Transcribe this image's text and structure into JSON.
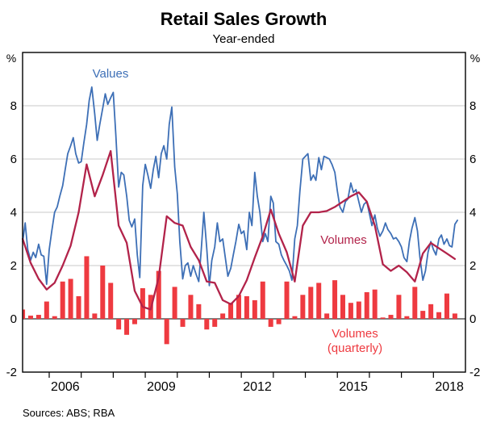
{
  "title": "Retail Sales Growth",
  "subtitle": "Year-ended",
  "source_note": "Sources: ABS; RBA",
  "axis": {
    "unit_left": "%",
    "unit_right": "%",
    "y_min": -2,
    "y_max": 10,
    "y_tick_labels": [
      8,
      6,
      4,
      2,
      0,
      -2
    ],
    "y_gridlines": [
      2,
      4,
      6,
      8
    ],
    "x_min": 2005.17,
    "x_max": 2019.0,
    "x_tick_years": [
      2006,
      2007,
      2008,
      2009,
      2010,
      2011,
      2012,
      2013,
      2014,
      2015,
      2016,
      2017,
      2018
    ],
    "x_year_labels": [
      2006,
      2009,
      2012,
      2015,
      2018
    ]
  },
  "series_labels": {
    "values": "Values",
    "volumes": "Volumes",
    "volumes_quarterly_line1": "Volumes",
    "volumes_quarterly_line2": "(quarterly)"
  },
  "colors": {
    "values_line": "#3d6fb6",
    "volumes_line": "#b2234a",
    "bars": "#ee3a40",
    "grid": "#c9c9c9",
    "axis": "#000000",
    "title_text": "#000000"
  },
  "chart_data": {
    "type": "line+bar",
    "title": "Retail Sales Growth",
    "subtitle": "Year-ended",
    "ylabel": "%",
    "ylim": [
      -2,
      10
    ],
    "xlim": [
      2005.17,
      2019.0
    ],
    "grid": "horizontal",
    "series": [
      {
        "name": "Values (year-ended growth, monthly)",
        "type": "line",
        "color_key": "values_line",
        "points": [
          [
            2005.17,
            2.9
          ],
          [
            2005.25,
            3.6
          ],
          [
            2005.33,
            2.6
          ],
          [
            2005.42,
            2.2
          ],
          [
            2005.5,
            2.5
          ],
          [
            2005.58,
            2.3
          ],
          [
            2005.67,
            2.8
          ],
          [
            2005.75,
            2.4
          ],
          [
            2005.83,
            2.35
          ],
          [
            2005.92,
            1.3
          ],
          [
            2006.0,
            2.6
          ],
          [
            2006.08,
            3.3
          ],
          [
            2006.17,
            4.0
          ],
          [
            2006.25,
            4.2
          ],
          [
            2006.33,
            4.6
          ],
          [
            2006.42,
            5.0
          ],
          [
            2006.5,
            5.6
          ],
          [
            2006.58,
            6.2
          ],
          [
            2006.67,
            6.5
          ],
          [
            2006.75,
            6.8
          ],
          [
            2006.83,
            6.2
          ],
          [
            2006.92,
            5.85
          ],
          [
            2007.0,
            5.9
          ],
          [
            2007.08,
            6.6
          ],
          [
            2007.17,
            7.3
          ],
          [
            2007.25,
            8.2
          ],
          [
            2007.33,
            8.7
          ],
          [
            2007.42,
            7.7
          ],
          [
            2007.5,
            6.7
          ],
          [
            2007.58,
            7.3
          ],
          [
            2007.67,
            7.9
          ],
          [
            2007.75,
            8.45
          ],
          [
            2007.83,
            8.05
          ],
          [
            2007.92,
            8.3
          ],
          [
            2008.0,
            8.5
          ],
          [
            2008.08,
            6.9
          ],
          [
            2008.17,
            4.95
          ],
          [
            2008.25,
            5.5
          ],
          [
            2008.33,
            5.4
          ],
          [
            2008.42,
            4.6
          ],
          [
            2008.5,
            3.7
          ],
          [
            2008.58,
            3.45
          ],
          [
            2008.67,
            3.75
          ],
          [
            2008.75,
            2.4
          ],
          [
            2008.83,
            1.55
          ],
          [
            2008.92,
            5.0
          ],
          [
            2009.0,
            5.8
          ],
          [
            2009.08,
            5.4
          ],
          [
            2009.17,
            4.9
          ],
          [
            2009.25,
            5.6
          ],
          [
            2009.33,
            6.1
          ],
          [
            2009.42,
            5.3
          ],
          [
            2009.5,
            6.2
          ],
          [
            2009.58,
            6.5
          ],
          [
            2009.67,
            6.0
          ],
          [
            2009.75,
            7.3
          ],
          [
            2009.83,
            7.95
          ],
          [
            2009.92,
            5.7
          ],
          [
            2010.0,
            4.7
          ],
          [
            2010.08,
            2.9
          ],
          [
            2010.17,
            1.5
          ],
          [
            2010.25,
            2.0
          ],
          [
            2010.33,
            2.1
          ],
          [
            2010.42,
            1.6
          ],
          [
            2010.5,
            2.0
          ],
          [
            2010.58,
            1.7
          ],
          [
            2010.67,
            1.4
          ],
          [
            2010.75,
            2.6
          ],
          [
            2010.83,
            4.0
          ],
          [
            2010.92,
            2.65
          ],
          [
            2011.0,
            1.25
          ],
          [
            2011.08,
            2.2
          ],
          [
            2011.17,
            2.7
          ],
          [
            2011.25,
            3.6
          ],
          [
            2011.33,
            2.9
          ],
          [
            2011.42,
            3.0
          ],
          [
            2011.5,
            2.3
          ],
          [
            2011.58,
            1.6
          ],
          [
            2011.67,
            1.9
          ],
          [
            2011.75,
            2.4
          ],
          [
            2011.83,
            2.9
          ],
          [
            2011.92,
            3.55
          ],
          [
            2012.0,
            3.2
          ],
          [
            2012.08,
            3.3
          ],
          [
            2012.17,
            2.6
          ],
          [
            2012.25,
            4.0
          ],
          [
            2012.33,
            3.5
          ],
          [
            2012.42,
            5.5
          ],
          [
            2012.5,
            4.6
          ],
          [
            2012.58,
            4.0
          ],
          [
            2012.67,
            2.9
          ],
          [
            2012.75,
            3.2
          ],
          [
            2012.83,
            2.9
          ],
          [
            2012.92,
            4.6
          ],
          [
            2013.0,
            4.35
          ],
          [
            2013.08,
            2.9
          ],
          [
            2013.17,
            2.8
          ],
          [
            2013.25,
            2.4
          ],
          [
            2013.33,
            2.2
          ],
          [
            2013.42,
            2.0
          ],
          [
            2013.5,
            1.8
          ],
          [
            2013.58,
            1.45
          ],
          [
            2013.67,
            3.0
          ],
          [
            2013.75,
            3.5
          ],
          [
            2013.83,
            4.8
          ],
          [
            2013.92,
            6.0
          ],
          [
            2014.08,
            6.2
          ],
          [
            2014.17,
            5.2
          ],
          [
            2014.25,
            5.4
          ],
          [
            2014.33,
            5.2
          ],
          [
            2014.42,
            6.05
          ],
          [
            2014.5,
            5.6
          ],
          [
            2014.58,
            6.1
          ],
          [
            2014.67,
            6.05
          ],
          [
            2014.75,
            6.0
          ],
          [
            2014.83,
            5.8
          ],
          [
            2014.92,
            5.5
          ],
          [
            2015.0,
            4.8
          ],
          [
            2015.08,
            4.2
          ],
          [
            2015.17,
            4.0
          ],
          [
            2015.25,
            4.4
          ],
          [
            2015.33,
            4.5
          ],
          [
            2015.42,
            5.1
          ],
          [
            2015.5,
            4.75
          ],
          [
            2015.58,
            4.85
          ],
          [
            2015.67,
            4.4
          ],
          [
            2015.75,
            4.0
          ],
          [
            2015.83,
            4.3
          ],
          [
            2015.92,
            4.4
          ],
          [
            2016.0,
            3.95
          ],
          [
            2016.08,
            3.5
          ],
          [
            2016.17,
            3.9
          ],
          [
            2016.25,
            3.4
          ],
          [
            2016.33,
            3.1
          ],
          [
            2016.42,
            3.3
          ],
          [
            2016.5,
            3.6
          ],
          [
            2016.58,
            3.35
          ],
          [
            2016.67,
            3.2
          ],
          [
            2016.75,
            3.0
          ],
          [
            2016.83,
            3.05
          ],
          [
            2016.92,
            2.9
          ],
          [
            2017.0,
            2.7
          ],
          [
            2017.08,
            2.3
          ],
          [
            2017.17,
            2.15
          ],
          [
            2017.25,
            2.9
          ],
          [
            2017.33,
            3.4
          ],
          [
            2017.42,
            3.8
          ],
          [
            2017.5,
            3.3
          ],
          [
            2017.58,
            2.3
          ],
          [
            2017.67,
            1.45
          ],
          [
            2017.75,
            1.8
          ],
          [
            2017.83,
            2.5
          ],
          [
            2017.92,
            2.9
          ],
          [
            2018.0,
            2.6
          ],
          [
            2018.08,
            2.4
          ],
          [
            2018.17,
            3.0
          ],
          [
            2018.25,
            3.15
          ],
          [
            2018.33,
            2.8
          ],
          [
            2018.42,
            3.0
          ],
          [
            2018.5,
            2.75
          ],
          [
            2018.58,
            2.7
          ],
          [
            2018.67,
            3.55
          ],
          [
            2018.75,
            3.7
          ]
        ]
      },
      {
        "name": "Volumes (year-ended growth, quarterly)",
        "type": "line",
        "color_key": "volumes_line",
        "points": [
          [
            2005.17,
            3.0
          ],
          [
            2005.42,
            2.1
          ],
          [
            2005.67,
            1.5
          ],
          [
            2005.92,
            1.1
          ],
          [
            2006.17,
            1.35
          ],
          [
            2006.42,
            2.0
          ],
          [
            2006.67,
            2.75
          ],
          [
            2006.92,
            4.0
          ],
          [
            2007.17,
            5.8
          ],
          [
            2007.42,
            4.6
          ],
          [
            2007.67,
            5.4
          ],
          [
            2007.92,
            6.3
          ],
          [
            2008.17,
            3.5
          ],
          [
            2008.42,
            2.85
          ],
          [
            2008.67,
            1.05
          ],
          [
            2008.92,
            0.45
          ],
          [
            2009.17,
            0.35
          ],
          [
            2009.42,
            1.55
          ],
          [
            2009.67,
            3.85
          ],
          [
            2009.92,
            3.6
          ],
          [
            2010.17,
            3.5
          ],
          [
            2010.42,
            2.7
          ],
          [
            2010.67,
            2.2
          ],
          [
            2010.92,
            1.4
          ],
          [
            2011.17,
            1.35
          ],
          [
            2011.42,
            0.7
          ],
          [
            2011.67,
            0.55
          ],
          [
            2011.92,
            0.85
          ],
          [
            2012.17,
            1.45
          ],
          [
            2012.42,
            2.3
          ],
          [
            2012.67,
            3.1
          ],
          [
            2012.92,
            4.1
          ],
          [
            2013.17,
            3.2
          ],
          [
            2013.42,
            2.5
          ],
          [
            2013.67,
            1.4
          ],
          [
            2013.92,
            3.5
          ],
          [
            2014.17,
            4.0
          ],
          [
            2014.42,
            4.0
          ],
          [
            2014.67,
            4.05
          ],
          [
            2014.92,
            4.2
          ],
          [
            2015.17,
            4.4
          ],
          [
            2015.42,
            4.6
          ],
          [
            2015.67,
            4.75
          ],
          [
            2015.92,
            4.4
          ],
          [
            2016.17,
            3.5
          ],
          [
            2016.42,
            2.05
          ],
          [
            2016.67,
            1.8
          ],
          [
            2016.92,
            2.0
          ],
          [
            2017.17,
            1.75
          ],
          [
            2017.42,
            1.4
          ],
          [
            2017.67,
            2.45
          ],
          [
            2017.92,
            2.85
          ],
          [
            2018.17,
            2.65
          ],
          [
            2018.42,
            2.45
          ],
          [
            2018.67,
            2.25
          ]
        ]
      },
      {
        "name": "Volumes (quarterly growth)",
        "type": "bar",
        "color_key": "bars",
        "points": [
          [
            2005.17,
            0.35
          ],
          [
            2005.42,
            0.12
          ],
          [
            2005.67,
            0.15
          ],
          [
            2005.92,
            0.65
          ],
          [
            2006.17,
            0.1
          ],
          [
            2006.42,
            1.4
          ],
          [
            2006.67,
            1.5
          ],
          [
            2006.92,
            0.85
          ],
          [
            2007.17,
            2.35
          ],
          [
            2007.42,
            0.2
          ],
          [
            2007.67,
            2.0
          ],
          [
            2007.92,
            1.35
          ],
          [
            2008.17,
            -0.4
          ],
          [
            2008.42,
            -0.6
          ],
          [
            2008.67,
            -0.2
          ],
          [
            2008.92,
            1.15
          ],
          [
            2009.17,
            0.9
          ],
          [
            2009.42,
            1.8
          ],
          [
            2009.67,
            -0.95
          ],
          [
            2009.92,
            1.2
          ],
          [
            2010.17,
            -0.3
          ],
          [
            2010.42,
            0.9
          ],
          [
            2010.67,
            0.55
          ],
          [
            2010.92,
            -0.4
          ],
          [
            2011.17,
            -0.3
          ],
          [
            2011.42,
            0.2
          ],
          [
            2011.67,
            0.6
          ],
          [
            2011.92,
            0.9
          ],
          [
            2012.17,
            0.85
          ],
          [
            2012.42,
            0.7
          ],
          [
            2012.67,
            1.4
          ],
          [
            2012.92,
            -0.3
          ],
          [
            2013.17,
            -0.2
          ],
          [
            2013.42,
            1.4
          ],
          [
            2013.67,
            0.1
          ],
          [
            2013.92,
            0.9
          ],
          [
            2014.17,
            1.2
          ],
          [
            2014.42,
            1.35
          ],
          [
            2014.67,
            0.2
          ],
          [
            2014.92,
            1.45
          ],
          [
            2015.17,
            0.9
          ],
          [
            2015.42,
            0.6
          ],
          [
            2015.67,
            0.65
          ],
          [
            2015.92,
            1.0
          ],
          [
            2016.17,
            1.1
          ],
          [
            2016.42,
            0.05
          ],
          [
            2016.67,
            0.15
          ],
          [
            2016.92,
            0.9
          ],
          [
            2017.17,
            0.1
          ],
          [
            2017.42,
            1.2
          ],
          [
            2017.67,
            0.3
          ],
          [
            2017.92,
            0.55
          ],
          [
            2018.17,
            0.25
          ],
          [
            2018.42,
            0.95
          ],
          [
            2018.67,
            0.2
          ]
        ]
      }
    ]
  }
}
